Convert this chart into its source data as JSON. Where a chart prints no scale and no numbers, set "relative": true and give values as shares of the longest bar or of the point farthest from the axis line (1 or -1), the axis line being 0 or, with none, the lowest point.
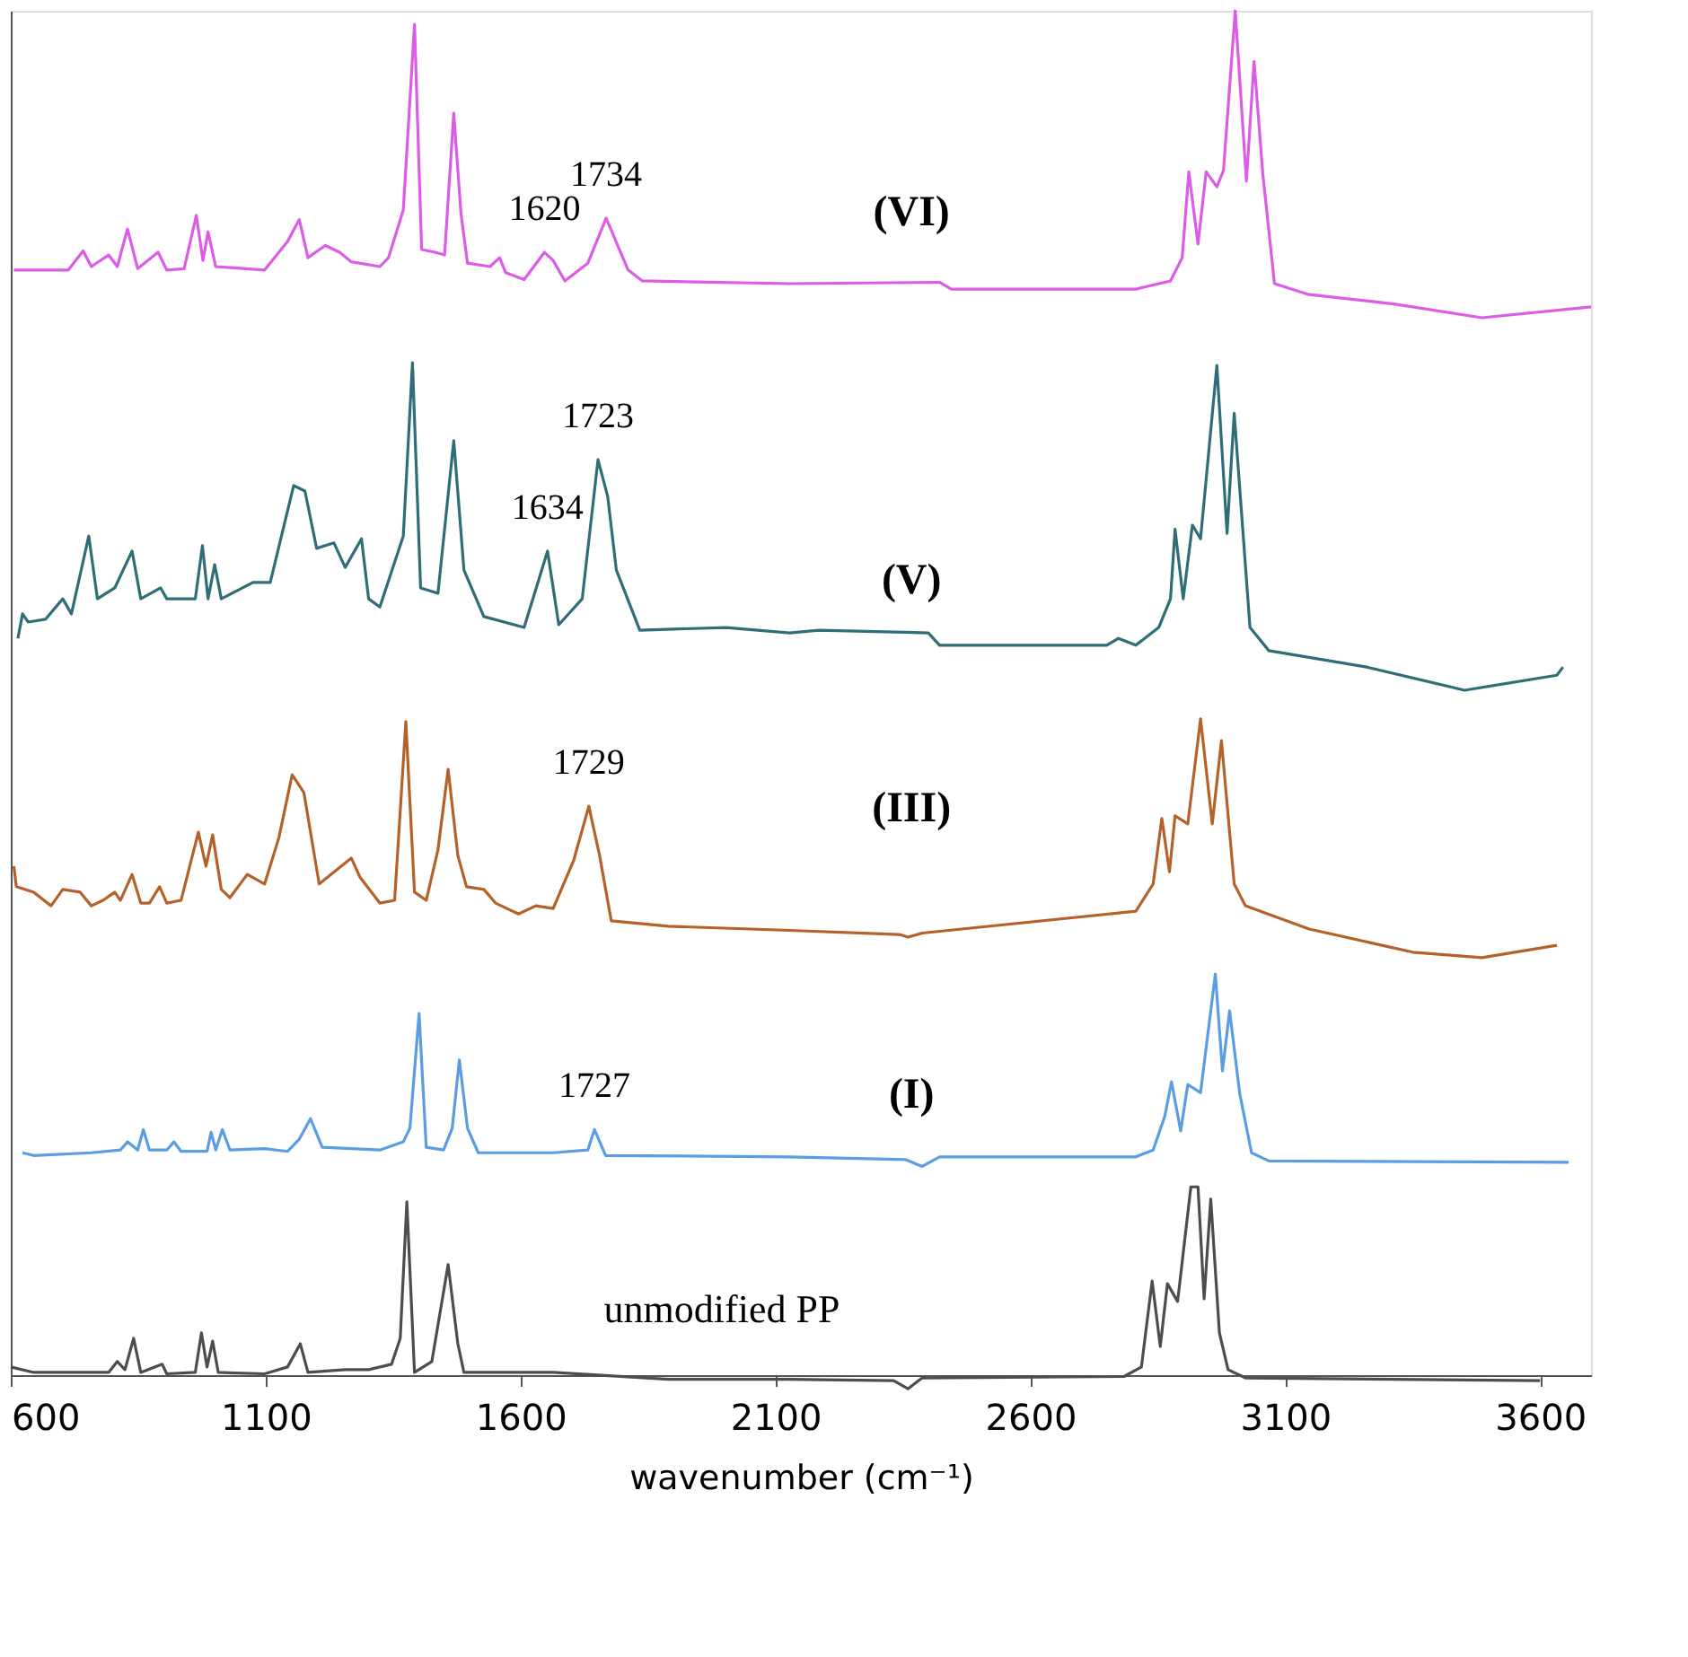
{
  "chart_data": {
    "type": "line",
    "relative": true,
    "xlabel": "wavenumber (cm⁻¹)",
    "xlim": [
      600,
      3700
    ],
    "xticks": [
      600,
      1100,
      1600,
      2100,
      2600,
      3100,
      3600
    ],
    "grid": false,
    "tick_labels": "x",
    "line_style": "solid",
    "series": [
      {
        "name": "(VI)",
        "color": "#dc5ce8",
        "x": [
          606,
          713,
          742,
          758,
          792,
          809,
          829,
          849,
          889,
          906,
          940,
          964,
          977,
          987,
          1002,
          1098,
          1143,
          1166,
          1183,
          1217,
          1245,
          1268,
          1324,
          1341,
          1370,
          1392,
          1406,
          1432,
          1451,
          1469,
          1483,
          1496,
          1540,
          1559,
          1571,
          1607,
          1647,
          1664,
          1687,
          1732,
          1768,
          1811,
          1839,
          2128,
          2422,
          2445,
          2807,
          2875,
          2898,
          2911,
          2929,
          2945,
          2966,
          2979,
          3002,
          3024,
          3039,
          3056,
          3079,
          3147,
          3316,
          3486,
          3700
        ],
        "values": [
          0.81,
          0.81,
          0.824,
          0.8125,
          0.821,
          0.8125,
          0.84,
          0.811,
          0.823,
          0.81,
          0.811,
          0.85,
          0.817,
          0.838,
          0.8125,
          0.81,
          0.831,
          0.847,
          0.819,
          0.828,
          0.823,
          0.816,
          0.8125,
          0.819,
          0.854,
          0.99,
          0.825,
          0.823,
          0.821,
          0.925,
          0.852,
          0.815,
          0.8125,
          0.819,
          0.808,
          0.803,
          0.823,
          0.817,
          0.802,
          0.815,
          0.848,
          0.81,
          0.802,
          0.8,
          0.801,
          0.796,
          0.796,
          0.802,
          0.819,
          0.882,
          0.829,
          0.882,
          0.871,
          0.883,
          1.0,
          0.875,
          0.963,
          0.881,
          0.8,
          0.792,
          0.785,
          0.775,
          0.783
        ]
      },
      {
        "name": "(V)",
        "color": "#2f6e76",
        "x": [
          614,
          623,
          634,
          668,
          702,
          719,
          753,
          770,
          804,
          838,
          855,
          894,
          906,
          962,
          976,
          987,
          1000,
          1013,
          1075,
          1109,
          1155,
          1177,
          1200,
          1234,
          1256,
          1288,
          1302,
          1324,
          1370,
          1388,
          1404,
          1438,
          1469,
          1489,
          1528,
          1607,
          1653,
          1675,
          1721,
          1752,
          1771,
          1788,
          1834,
          2003,
          2128,
          2185,
          2400,
          2422,
          2750,
          2773,
          2807,
          2852,
          2875,
          2884,
          2900,
          2918,
          2934,
          2966,
          2986,
          3000,
          3031,
          3068,
          3260,
          3452,
          3633,
          3645
        ],
        "values": [
          0.54,
          0.558,
          0.552,
          0.554,
          0.569,
          0.558,
          0.615,
          0.569,
          0.577,
          0.604,
          0.569,
          0.577,
          0.569,
          0.569,
          0.608,
          0.569,
          0.594,
          0.569,
          0.581,
          0.581,
          0.652,
          0.648,
          0.606,
          0.61,
          0.592,
          0.613,
          0.569,
          0.563,
          0.615,
          0.742,
          0.577,
          0.573,
          0.685,
          0.59,
          0.556,
          0.548,
          0.604,
          0.55,
          0.569,
          0.671,
          0.644,
          0.59,
          0.546,
          0.548,
          0.544,
          0.546,
          0.544,
          0.535,
          0.535,
          0.54,
          0.535,
          0.548,
          0.569,
          0.62,
          0.569,
          0.623,
          0.613,
          0.74,
          0.617,
          0.705,
          0.548,
          0.531,
          0.519,
          0.502,
          0.513,
          0.519
        ]
      },
      {
        "name": "(III)",
        "color": "#b5622a",
        "x": [
          606,
          611,
          645,
          679,
          702,
          736,
          758,
          781,
          804,
          815,
          838,
          855,
          872,
          892,
          906,
          934,
          968,
          983,
          996,
          1013,
          1030,
          1064,
          1098,
          1126,
          1152,
          1175,
          1205,
          1268,
          1285,
          1324,
          1353,
          1375,
          1392,
          1415,
          1438,
          1458,
          1477,
          1494,
          1528,
          1551,
          1596,
          1630,
          1664,
          1704,
          1734,
          1755,
          1778,
          1890,
          2128,
          2343,
          2360,
          2388,
          2807,
          2841,
          2858,
          2873,
          2884,
          2909,
          2934,
          2957,
          2975,
          3000,
          3022,
          3147,
          3350,
          3486,
          3633
        ],
        "values": [
          0.373,
          0.358,
          0.354,
          0.344,
          0.356,
          0.354,
          0.344,
          0.348,
          0.354,
          0.348,
          0.367,
          0.346,
          0.346,
          0.358,
          0.346,
          0.348,
          0.398,
          0.373,
          0.396,
          0.356,
          0.35,
          0.367,
          0.36,
          0.394,
          0.44,
          0.427,
          0.36,
          0.379,
          0.365,
          0.346,
          0.348,
          0.479,
          0.354,
          0.348,
          0.385,
          0.444,
          0.381,
          0.358,
          0.356,
          0.346,
          0.338,
          0.344,
          0.342,
          0.377,
          0.417,
          0.381,
          0.333,
          0.329,
          0.326,
          0.323,
          0.321,
          0.324,
          0.34,
          0.36,
          0.408,
          0.369,
          0.41,
          0.404,
          0.481,
          0.404,
          0.465,
          0.36,
          0.344,
          0.327,
          0.31,
          0.306,
          0.315
        ]
      },
      {
        "name": "(I)",
        "color": "#5b9de3",
        "x": [
          623,
          645,
          758,
          815,
          829,
          849,
          860,
          872,
          906,
          920,
          934,
          985,
          993,
          1002,
          1015,
          1030,
          1098,
          1143,
          1166,
          1188,
          1211,
          1268,
          1324,
          1370,
          1383,
          1401,
          1415,
          1449,
          1466,
          1480,
          1496,
          1517,
          1664,
          1732,
          1745,
          1767,
          2128,
          2355,
          2388,
          2422,
          2807,
          2841,
          2864,
          2877,
          2895,
          2909,
          2934,
          2963,
          2977,
          2991,
          3011,
          3034,
          3068,
          3656
        ],
        "values": [
          0.163,
          0.161,
          0.163,
          0.165,
          0.171,
          0.165,
          0.18,
          0.165,
          0.165,
          0.171,
          0.164,
          0.164,
          0.178,
          0.165,
          0.18,
          0.165,
          0.166,
          0.164,
          0.173,
          0.188,
          0.167,
          0.166,
          0.165,
          0.171,
          0.181,
          0.265,
          0.167,
          0.165,
          0.181,
          0.231,
          0.181,
          0.163,
          0.163,
          0.165,
          0.18,
          0.161,
          0.16,
          0.158,
          0.153,
          0.16,
          0.16,
          0.165,
          0.19,
          0.215,
          0.179,
          0.213,
          0.207,
          0.294,
          0.223,
          0.267,
          0.206,
          0.163,
          0.157,
          0.156
        ]
      },
      {
        "name": "unmodified PP",
        "color": "#4d4d4d",
        "x": [
          600,
          645,
          792,
          809,
          824,
          841,
          855,
          897,
          906,
          962,
          974,
          985,
          996,
          1007,
          1098,
          1143,
          1168,
          1183,
          1256,
          1302,
          1347,
          1364,
          1377,
          1392,
          1426,
          1458,
          1477,
          1489,
          1664,
          1890,
          2128,
          2332,
          2360,
          2388,
          2784,
          2818,
          2839,
          2855,
          2869,
          2889,
          2915,
          2929,
          2941,
          2954,
          2971,
          2988,
          3022,
          3600
        ],
        "values": [
          0.006,
          0.002,
          0.002,
          0.01,
          0.004,
          0.027,
          0.002,
          0.008,
          0.001,
          0.002,
          0.031,
          0.006,
          0.025,
          0.002,
          0.001,
          0.006,
          0.023,
          0.002,
          0.004,
          0.004,
          0.008,
          0.027,
          0.127,
          0.002,
          0.01,
          0.081,
          0.023,
          0.002,
          0.002,
          -0.003,
          -0.003,
          -0.004,
          -0.01,
          -0.002,
          -0.001,
          0.006,
          0.069,
          0.021,
          0.067,
          0.054,
          0.138,
          0.138,
          0.056,
          0.129,
          0.031,
          0.004,
          -0.002,
          -0.004
        ]
      }
    ],
    "annotations": [
      {
        "text": "1620",
        "x": 1647,
        "y": 0.823
      },
      {
        "text": "1734",
        "x": 1768,
        "y": 0.848
      },
      {
        "text": "1634",
        "x": 1653,
        "y": 0.604
      },
      {
        "text": "1723",
        "x": 1752,
        "y": 0.671
      },
      {
        "text": "1729",
        "x": 1734,
        "y": 0.417
      },
      {
        "text": "1727",
        "x": 1745,
        "y": 0.18
      }
    ]
  }
}
